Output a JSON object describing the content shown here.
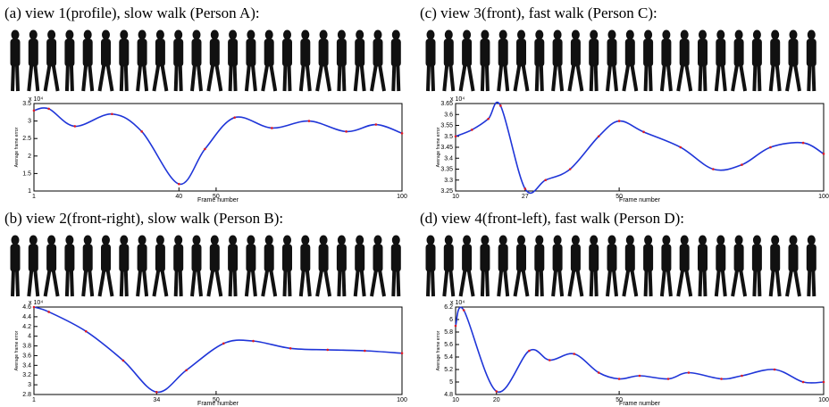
{
  "chart_data": [
    {
      "type": "line",
      "title": "(a) view 1(profile), slow walk (Person A):",
      "x_label": "Frame number",
      "y_label": "Average frame error",
      "multiplier": "x 10⁴",
      "x": [
        1,
        5,
        12,
        22,
        30,
        40,
        47,
        55,
        65,
        75,
        85,
        93,
        100
      ],
      "series": [
        {
          "color": "#1f35d8",
          "marker_color": "#e01b24",
          "values": [
            3.3,
            3.35,
            2.85,
            3.2,
            2.7,
            1.2,
            2.2,
            3.1,
            2.8,
            3.0,
            2.7,
            2.9,
            2.65
          ]
        }
      ],
      "xlim": [
        1,
        100
      ],
      "ylim": [
        1,
        3.5
      ],
      "xticks": [
        1,
        40,
        50,
        100
      ],
      "yticks": [
        1,
        1.5,
        2,
        2.5,
        3,
        3.5
      ]
    },
    {
      "type": "line",
      "title": "(b) view 2(front-right), slow walk (Person B):",
      "x_label": "Frame number",
      "y_label": "Average frame error",
      "multiplier": "x 10⁴",
      "x": [
        1,
        5,
        15,
        25,
        34,
        42,
        52,
        60,
        70,
        80,
        90,
        100
      ],
      "series": [
        {
          "color": "#1f35d8",
          "marker_color": "#e01b24",
          "values": [
            4.6,
            4.5,
            4.1,
            3.5,
            2.85,
            3.3,
            3.85,
            3.9,
            3.75,
            3.72,
            3.7,
            3.65
          ]
        }
      ],
      "xlim": [
        1,
        100
      ],
      "ylim": [
        2.8,
        4.6
      ],
      "xticks": [
        1,
        34,
        50,
        100
      ],
      "yticks": [
        2.8,
        3,
        3.2,
        3.4,
        3.6,
        3.8,
        4,
        4.2,
        4.4,
        4.6
      ]
    },
    {
      "type": "line",
      "title": "(c) view 3(front), fast walk (Person C):",
      "x_label": "Frame number",
      "y_label": "Average frame error",
      "multiplier": "x 10⁴",
      "x": [
        10,
        14,
        18,
        21,
        27,
        32,
        38,
        45,
        50,
        56,
        65,
        73,
        80,
        87,
        95,
        100
      ],
      "series": [
        {
          "color": "#1f35d8",
          "marker_color": "#e01b24",
          "values": [
            3.5,
            3.53,
            3.58,
            3.64,
            3.26,
            3.3,
            3.35,
            3.5,
            3.57,
            3.52,
            3.45,
            3.35,
            3.37,
            3.45,
            3.47,
            3.42
          ]
        }
      ],
      "xlim": [
        10,
        100
      ],
      "ylim": [
        3.25,
        3.65
      ],
      "xticks": [
        10,
        27,
        50,
        100
      ],
      "yticks": [
        3.25,
        3.3,
        3.35,
        3.4,
        3.45,
        3.5,
        3.55,
        3.6,
        3.65
      ]
    },
    {
      "type": "line",
      "title": "(d) view 4(front-left), fast walk (Person D):",
      "x_label": "Frame number",
      "y_label": "Average frame error",
      "multiplier": "x 10⁴",
      "x": [
        10,
        12,
        20,
        28,
        33,
        39,
        45,
        50,
        55,
        62,
        67,
        75,
        80,
        88,
        95,
        100
      ],
      "series": [
        {
          "color": "#1f35d8",
          "marker_color": "#e01b24",
          "values": [
            5.9,
            6.15,
            4.85,
            5.5,
            5.35,
            5.45,
            5.15,
            5.05,
            5.1,
            5.05,
            5.15,
            5.05,
            5.1,
            5.2,
            5.0,
            5.0
          ]
        }
      ],
      "xlim": [
        10,
        100
      ],
      "ylim": [
        4.8,
        6.2
      ],
      "xticks": [
        10,
        20,
        50,
        100
      ],
      "yticks": [
        4.8,
        5,
        5.2,
        5.4,
        5.6,
        5.8,
        6,
        6.2
      ]
    }
  ]
}
